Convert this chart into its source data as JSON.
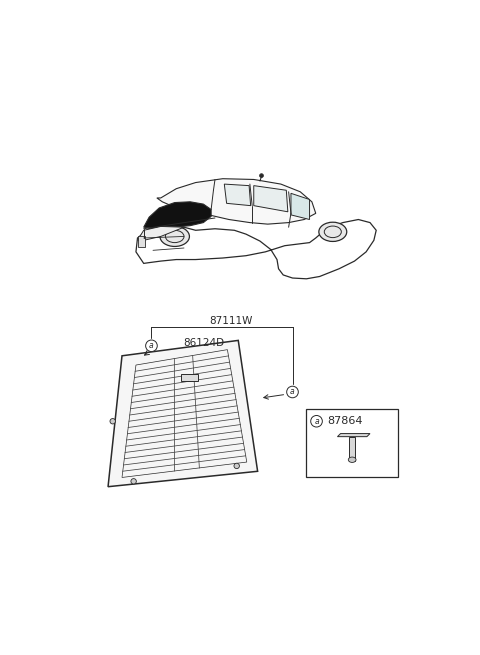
{
  "bg_color": "#ffffff",
  "line_color": "#2a2a2a",
  "part_label_87111W": "87111W",
  "part_label_86124D": "86124D",
  "part_label_87864": "87864",
  "callout_letter": "a",
  "fig_width": 4.8,
  "fig_height": 6.55,
  "dpi": 100
}
